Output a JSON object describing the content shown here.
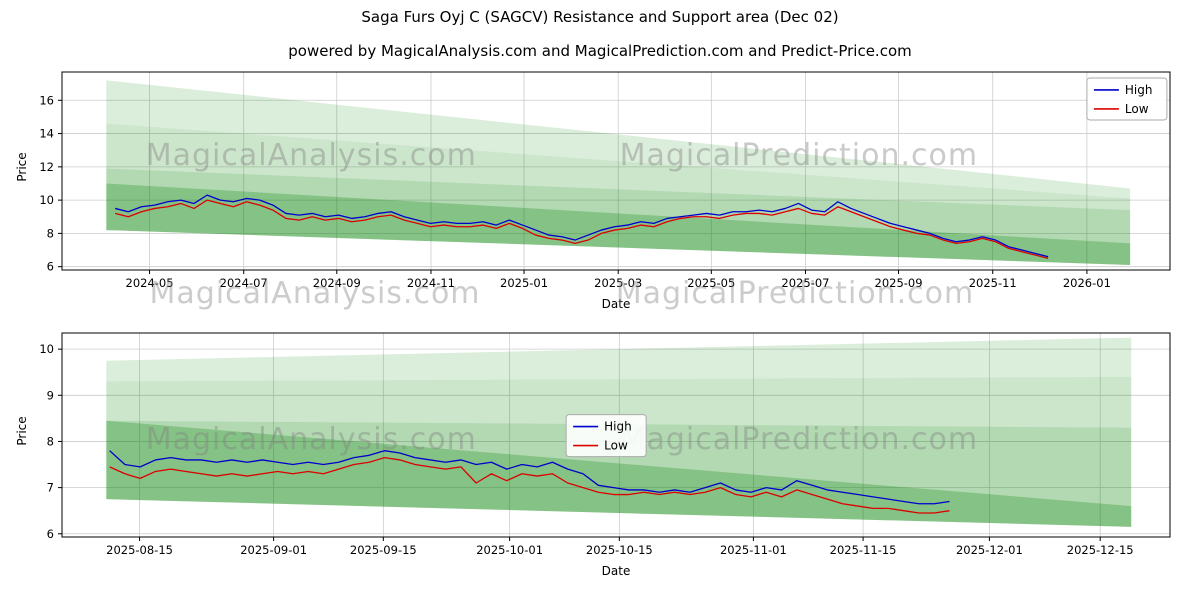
{
  "figure": {
    "title": "Saga Furs Oyj C (SAGCV) Resistance and Support area (Dec 02)",
    "subtitle": "powered by MagicalAnalysis.com and MagicalPrediction.com and Predict-Price.com",
    "background": "#ffffff"
  },
  "watermarks_between": {
    "left": "MagicalAnalysis.com",
    "right": "MagicalPrediction.com"
  },
  "colors": {
    "high": "#0000cc",
    "low": "#dd0000",
    "band_green": "#008000",
    "grid": "#cccccc",
    "spine": "#000000",
    "watermark": "#808080"
  },
  "chart_data": [
    {
      "type": "line",
      "xlabel": "Date",
      "ylabel": "Price",
      "grid": true,
      "ylim": [
        5.8,
        17.7
      ],
      "yticks": [
        6,
        8,
        10,
        12,
        14,
        16
      ],
      "xticks": [
        {
          "f": 0.079,
          "label": "2024-05"
        },
        {
          "f": 0.164,
          "label": "2024-07"
        },
        {
          "f": 0.248,
          "label": "2024-09"
        },
        {
          "f": 0.333,
          "label": "2024-11"
        },
        {
          "f": 0.417,
          "label": "2025-01"
        },
        {
          "f": 0.502,
          "label": "2025-03"
        },
        {
          "f": 0.586,
          "label": "2025-05"
        },
        {
          "f": 0.671,
          "label": "2025-07"
        },
        {
          "f": 0.755,
          "label": "2025-09"
        },
        {
          "f": 0.84,
          "label": "2025-11"
        },
        {
          "f": 0.925,
          "label": "2026-01"
        }
      ],
      "bands": [
        {
          "x0": 0.04,
          "t0": 17.2,
          "b0": 14.6,
          "x1": 0.964,
          "t1": 10.7,
          "b1": 10.1,
          "opacity": 0.14
        },
        {
          "x0": 0.04,
          "t0": 14.6,
          "b0": 11.9,
          "x1": 0.964,
          "t1": 10.1,
          "b1": 9.4,
          "opacity": 0.2
        },
        {
          "x0": 0.04,
          "t0": 11.9,
          "b0": 8.2,
          "x1": 0.964,
          "t1": 9.4,
          "b1": 6.1,
          "opacity": 0.3
        },
        {
          "x0": 0.04,
          "t0": 11.0,
          "b0": 8.2,
          "x1": 0.964,
          "t1": 7.4,
          "b1": 6.1,
          "opacity": 0.25
        }
      ],
      "legend": {
        "fx": 0.925,
        "fy": 0.03,
        "entries": [
          {
            "label": "High",
            "color": "#0000cc"
          },
          {
            "label": "Low",
            "color": "#dd0000"
          }
        ]
      },
      "watermarks": [
        {
          "text": "MagicalAnalysis.com",
          "fx": 0.225,
          "fy": 0.42
        },
        {
          "text": "MagicalPrediction.com",
          "fx": 0.665,
          "fy": 0.42
        }
      ],
      "series": [
        {
          "name": "High",
          "color": "#0000cc",
          "x_start": 0.048,
          "x_end": 0.89,
          "values": [
            9.5,
            9.3,
            9.6,
            9.7,
            9.9,
            10.0,
            9.8,
            10.3,
            10.0,
            9.9,
            10.1,
            10.0,
            9.7,
            9.2,
            9.1,
            9.2,
            9.0,
            9.1,
            8.9,
            9.0,
            9.2,
            9.3,
            9.0,
            8.8,
            8.6,
            8.7,
            8.6,
            8.6,
            8.7,
            8.5,
            8.8,
            8.5,
            8.2,
            7.9,
            7.8,
            7.6,
            7.9,
            8.2,
            8.4,
            8.5,
            8.7,
            8.6,
            8.9,
            9.0,
            9.1,
            9.2,
            9.1,
            9.3,
            9.3,
            9.4,
            9.3,
            9.5,
            9.8,
            9.4,
            9.3,
            9.9,
            9.5,
            9.2,
            8.9,
            8.6,
            8.4,
            8.2,
            8.0,
            7.7,
            7.5,
            7.6,
            7.8,
            7.6,
            7.2,
            7.0,
            6.8,
            6.6
          ]
        },
        {
          "name": "Low",
          "color": "#dd0000",
          "x_start": 0.048,
          "x_end": 0.89,
          "values": [
            9.2,
            9.0,
            9.3,
            9.5,
            9.6,
            9.8,
            9.5,
            10.0,
            9.8,
            9.6,
            9.9,
            9.7,
            9.4,
            8.9,
            8.8,
            9.0,
            8.8,
            8.9,
            8.7,
            8.8,
            9.0,
            9.1,
            8.8,
            8.6,
            8.4,
            8.5,
            8.4,
            8.4,
            8.5,
            8.3,
            8.6,
            8.3,
            7.9,
            7.7,
            7.6,
            7.4,
            7.6,
            8.0,
            8.2,
            8.3,
            8.5,
            8.4,
            8.7,
            8.9,
            9.0,
            9.0,
            8.9,
            9.1,
            9.2,
            9.2,
            9.1,
            9.3,
            9.5,
            9.2,
            9.1,
            9.6,
            9.3,
            9.0,
            8.7,
            8.4,
            8.2,
            8.0,
            7.9,
            7.6,
            7.4,
            7.5,
            7.7,
            7.5,
            7.1,
            6.9,
            6.7,
            6.5
          ]
        }
      ]
    },
    {
      "type": "line",
      "xlabel": "Date",
      "ylabel": "Price",
      "grid": true,
      "ylim": [
        5.93,
        10.35
      ],
      "yticks": [
        6,
        7,
        8,
        9,
        10
      ],
      "xticks": [
        {
          "f": 0.07,
          "label": "2025-08-15"
        },
        {
          "f": 0.191,
          "label": "2025-09-01"
        },
        {
          "f": 0.29,
          "label": "2025-09-15"
        },
        {
          "f": 0.404,
          "label": "2025-10-01"
        },
        {
          "f": 0.503,
          "label": "2025-10-15"
        },
        {
          "f": 0.624,
          "label": "2025-11-01"
        },
        {
          "f": 0.723,
          "label": "2025-11-15"
        },
        {
          "f": 0.837,
          "label": "2025-12-01"
        },
        {
          "f": 0.937,
          "label": "2025-12-15"
        }
      ],
      "bands": [
        {
          "x0": 0.04,
          "t0": 9.75,
          "b0": 9.3,
          "x1": 0.965,
          "t1": 10.25,
          "b1": 9.4,
          "opacity": 0.14
        },
        {
          "x0": 0.04,
          "t0": 9.3,
          "b0": 8.45,
          "x1": 0.965,
          "t1": 9.4,
          "b1": 8.3,
          "opacity": 0.2
        },
        {
          "x0": 0.04,
          "t0": 8.45,
          "b0": 6.75,
          "x1": 0.965,
          "t1": 8.3,
          "b1": 6.15,
          "opacity": 0.3
        },
        {
          "x0": 0.04,
          "t0": 8.45,
          "b0": 6.75,
          "x1": 0.965,
          "t1": 6.6,
          "b1": 6.15,
          "opacity": 0.25
        }
      ],
      "legend": {
        "fx": 0.455,
        "fy": 0.4,
        "entries": [
          {
            "label": "High",
            "color": "#0000cc"
          },
          {
            "label": "Low",
            "color": "#dd0000"
          }
        ]
      },
      "watermarks": [
        {
          "text": "MagicalAnalysis.com",
          "fx": 0.225,
          "fy": 0.52
        },
        {
          "text": "MagicalPrediction.com",
          "fx": 0.665,
          "fy": 0.52
        }
      ],
      "series": [
        {
          "name": "High",
          "color": "#0000cc",
          "x_start": 0.043,
          "x_end": 0.801,
          "values": [
            7.8,
            7.5,
            7.45,
            7.6,
            7.65,
            7.6,
            7.6,
            7.55,
            7.6,
            7.55,
            7.6,
            7.55,
            7.5,
            7.55,
            7.5,
            7.55,
            7.65,
            7.7,
            7.8,
            7.75,
            7.65,
            7.6,
            7.55,
            7.6,
            7.5,
            7.55,
            7.4,
            7.5,
            7.45,
            7.55,
            7.4,
            7.3,
            7.05,
            7.0,
            6.95,
            6.95,
            6.9,
            6.95,
            6.9,
            7.0,
            7.1,
            6.95,
            6.9,
            7.0,
            6.95,
            7.15,
            7.05,
            6.95,
            6.9,
            6.85,
            6.8,
            6.75,
            6.7,
            6.65,
            6.65,
            6.7
          ]
        },
        {
          "name": "Low",
          "color": "#dd0000",
          "x_start": 0.043,
          "x_end": 0.801,
          "values": [
            7.45,
            7.3,
            7.2,
            7.35,
            7.4,
            7.35,
            7.3,
            7.25,
            7.3,
            7.25,
            7.3,
            7.35,
            7.3,
            7.35,
            7.3,
            7.4,
            7.5,
            7.55,
            7.65,
            7.6,
            7.5,
            7.45,
            7.4,
            7.45,
            7.1,
            7.3,
            7.15,
            7.3,
            7.25,
            7.3,
            7.1,
            7.0,
            6.9,
            6.85,
            6.85,
            6.9,
            6.85,
            6.9,
            6.85,
            6.9,
            7.0,
            6.85,
            6.8,
            6.9,
            6.8,
            6.95,
            6.85,
            6.75,
            6.65,
            6.6,
            6.55,
            6.55,
            6.5,
            6.45,
            6.45,
            6.5
          ]
        }
      ]
    }
  ],
  "axis_labels": {
    "price_top": "Price",
    "price_bottom": "Price",
    "date_top": "Date",
    "date_bottom": "Date"
  }
}
